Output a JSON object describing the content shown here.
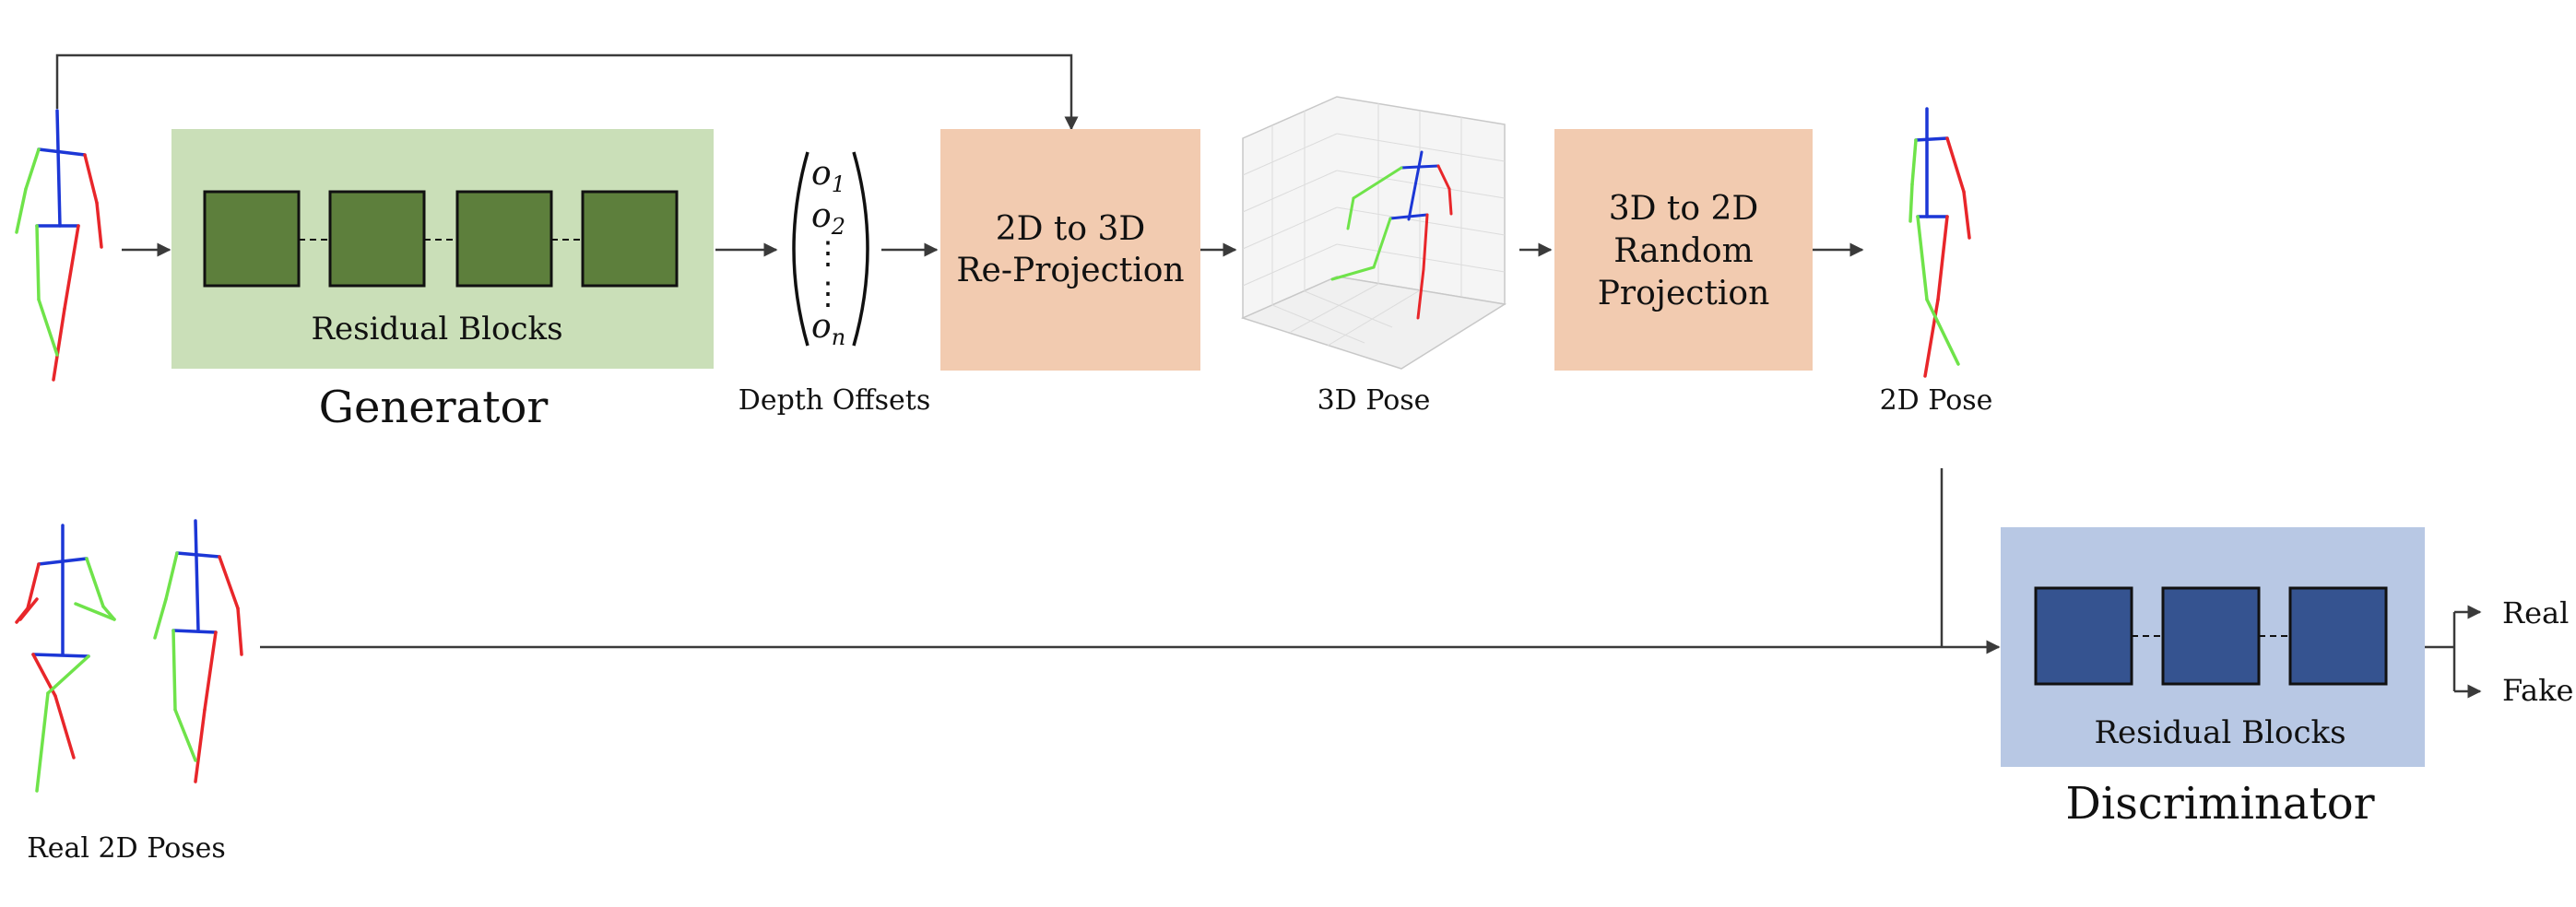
{
  "generator": {
    "block_label": "Residual Blocks",
    "title": "Generator",
    "block_fill": "#cadfb8",
    "square_fill": "#5d7f3c"
  },
  "depth_offsets": {
    "symbols": [
      "o",
      "o",
      "⋮",
      "⋮",
      "o"
    ],
    "subscripts": [
      "1",
      "2",
      "",
      "",
      "n"
    ],
    "caption": "Depth Offsets"
  },
  "reprojection": {
    "lines": [
      "2D to 3D",
      "Re-Projection"
    ],
    "fill": "#f2cbb0"
  },
  "pose3d": {
    "caption": "3D Pose"
  },
  "random_projection": {
    "lines": [
      "3D to 2D",
      "Random",
      "Projection"
    ],
    "fill": "#f2cbb0"
  },
  "pose2d": {
    "caption": "2D Pose"
  },
  "real_poses": {
    "caption": "Real 2D Poses"
  },
  "discriminator": {
    "block_label": "Residual Blocks",
    "title": "Discriminator",
    "block_fill": "#b8c8e4",
    "square_fill": "#355390"
  },
  "outputs": {
    "real": "Real",
    "fake": "Fake"
  },
  "colors": {
    "spine": "#1c37d6",
    "left_limb": "#e8262a",
    "right_limb": "#6fe34a",
    "arrow": "#3a3a3a"
  }
}
